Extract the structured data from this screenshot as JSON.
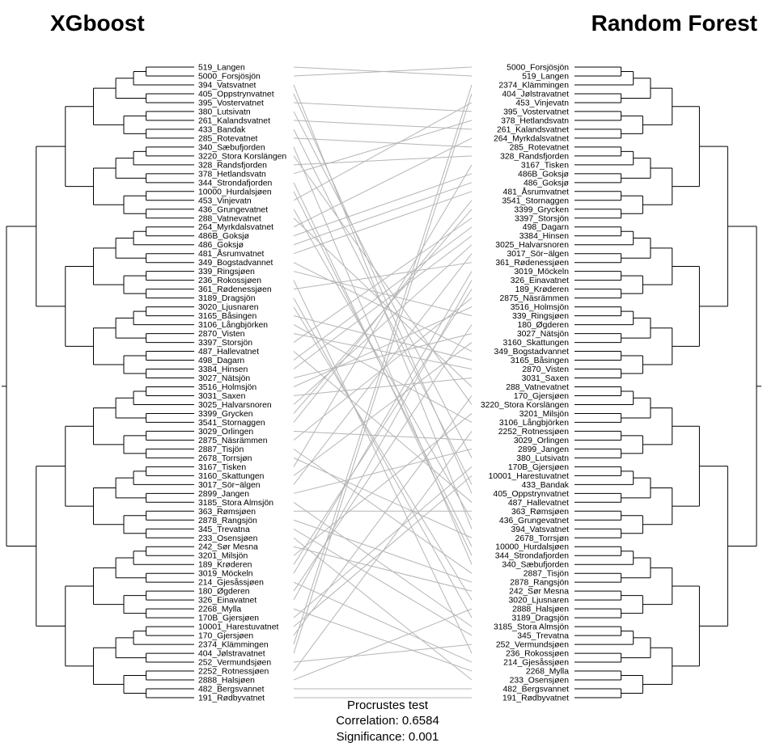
{
  "titles": {
    "left": "XGboost",
    "right": "Random Forest"
  },
  "left_leaves": [
    "519_Langen",
    "5000_Forsjösjön",
    "394_Vatsvatnet",
    "405_Oppstrynvatnet",
    "395_Vostervatnet",
    "380_Lutsivatn",
    "261_Kalandsvatnet",
    "433_Bandak",
    "285_Rotevatnet",
    "340_Sæbufjorden",
    "3220_Stora Korslängen",
    "328_Randsfjorden",
    "378_Hetlandsvatn",
    "344_Strondafjorden",
    "10000_Hurdalsjøen",
    "453_Vinjevatn",
    "436_Grungevatnet",
    "288_Vatnevatnet",
    "264_Myrkdalsvatnet",
    "486B_Goksjø",
    "486_Goksjø",
    "481_Åsrumvatnet",
    "349_Bogstadvannet",
    "339_Ringsjøen",
    "236_Rokossjøen",
    "361_Rødenessjøen",
    "3189_Dragsjön",
    "3020_Ljusnaren",
    "3165_Båsingen",
    "3106_Långbjörken",
    "2870_Visten",
    "3397_Storsjön",
    "487_Hallevatnet",
    "498_Dagarn",
    "3384_Hinsen",
    "3027_Nätsjön",
    "3516_Holmsjön",
    "3031_Saxen",
    "3025_Halvarsnoren",
    "3399_Grycken",
    "3541_Stornaggen",
    "3029_Orlingen",
    "2875_Näsrämmen",
    "2887_Tisjön",
    "2678_Torrsjøn",
    "3167_Tisken",
    "3160_Skattungen",
    "3017_Sör−älgen",
    "2899_Jangen",
    "3185_Stora Almsjön",
    "363_Rømsjøen",
    "2878_Rangsjön",
    "345_Trevatna",
    "233_Osensjøen",
    "242_Sør Mesna",
    "3201_Milsjön",
    "189_Krøderen",
    "3019_Möckeln",
    "214_Gjesåssjøen",
    "180_Øgderen",
    "326_Einavatnet",
    "2268_Mylla",
    "170B_Gjersjøen",
    "10001_Harestuvatnet",
    "170_Gjersjøen",
    "2374_Klämmingen",
    "404_Jølstravatnet",
    "252_Vermundsjøen",
    "2252_Rotnessjøen",
    "2888_Halsjøen",
    "482_Bergsvannet",
    "191_Rødbyvatnet"
  ],
  "right_leaves": [
    "5000_Forsjösjön",
    "519_Langen",
    "2374_Klämmingen",
    "404_Jølstravatnet",
    "453_Vinjevatn",
    "395_Vostervatnet",
    "378_Hetlandsvatn",
    "261_Kalandsvatnet",
    "264_Myrkdalsvatnet",
    "285_Rotevatnet",
    "328_Randsfjorden",
    "3167_Tisken",
    "486B_Goksjø",
    "486_Goksjø",
    "481_Åsrumvatnet",
    "3541_Stornaggen",
    "3399_Grycken",
    "3397_Storsjön",
    "498_Dagarn",
    "3384_Hinsen",
    "3025_Halvarsnoren",
    "3017_Sör−älgen",
    "361_Rødenessjøen",
    "3019_Möckeln",
    "326_Einavatnet",
    "189_Krøderen",
    "2875_Näsrämmen",
    "3516_Holmsjön",
    "339_Ringsjøen",
    "180_Øgderen",
    "3027_Nätsjön",
    "3160_Skattungen",
    "349_Bogstadvannet",
    "3165_Båsingen",
    "2870_Visten",
    "3031_Saxen",
    "288_Vatnevatnet",
    "170_Gjersjøen",
    "3220_Stora Korslängen",
    "3201_Milsjön",
    "3106_Långbjörken",
    "2252_Rotnessjøen",
    "3029_Orlingen",
    "2899_Jangen",
    "380_Lutsivatn",
    "170B_Gjersjøen",
    "10001_Harestuvatnet",
    "433_Bandak",
    "405_Oppstrynvatnet",
    "487_Hallevatnet",
    "363_Rømsjøen",
    "436_Grungevatnet",
    "394_Vatsvatnet",
    "2678_Torrsjøn",
    "10000_Hurdalsjøen",
    "344_Strondafjorden",
    "340_Sæbufjorden",
    "2887_Tisjön",
    "2878_Rangsjön",
    "242_Sør Mesna",
    "3020_Ljusnaren",
    "2888_Halsjøen",
    "3189_Dragsjön",
    "3185_Stora Almsjön",
    "345_Trevatna",
    "252_Vermundsjøen",
    "236_Rokossjøen",
    "214_Gjesåssjøen",
    "2268_Mylla",
    "233_Osensjøen",
    "482_Bergsvannet",
    "191_Rødbyvatnet"
  ],
  "stats": {
    "test": "Procrustes test",
    "correlation": "Correlation: 0.6584",
    "significance": "Significance: 0.001"
  },
  "colors": {
    "tree": "#000000",
    "connector": "#b5b5b5",
    "text": "#000000"
  }
}
